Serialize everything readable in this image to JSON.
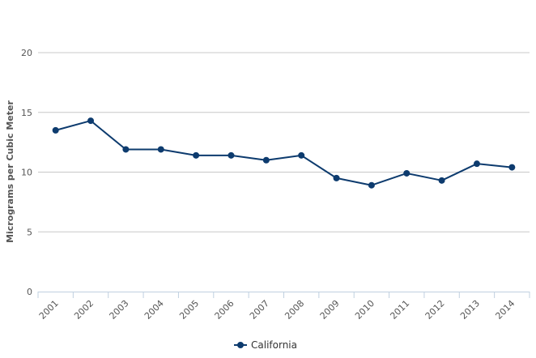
{
  "chart_data": {
    "type": "line",
    "title": "",
    "xlabel": "",
    "ylabel": "Micrograms per Cubic Meter",
    "x": [
      "2001",
      "2002",
      "2003",
      "2004",
      "2005",
      "2006",
      "2007",
      "2008",
      "2009",
      "2010",
      "2011",
      "2012",
      "2013",
      "2014"
    ],
    "ylim": [
      0,
      20
    ],
    "yticks": [
      0,
      5,
      10,
      15,
      20
    ],
    "grid": true,
    "legend": "bottom-center",
    "series": [
      {
        "name": "California",
        "color": "#0d3b6e",
        "values": [
          13.5,
          14.3,
          11.9,
          11.9,
          11.4,
          11.4,
          11.0,
          11.4,
          9.5,
          8.9,
          9.9,
          9.3,
          10.7,
          10.4
        ]
      }
    ]
  }
}
